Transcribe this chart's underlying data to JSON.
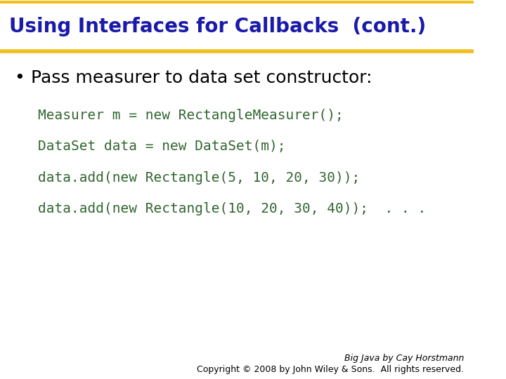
{
  "title": "Using Interfaces for Callbacks  (cont.)",
  "title_color": "#1a1aaa",
  "title_fontsize": 20,
  "bg_color": "#ffffff",
  "header_line_color": "#f0c020",
  "bullet_text": "Pass measurer to data set constructor:",
  "bullet_color": "#000000",
  "bullet_fontsize": 18,
  "code_lines": [
    "Measurer m = new RectangleMeasurer();",
    "DataSet data = new DataSet(m);",
    "data.add(new Rectangle(5, 10, 20, 30));",
    "data.add(new Rectangle(10, 20, 30, 40));  . . ."
  ],
  "code_color": "#336633",
  "code_fontsize": 14,
  "footer_line1": "Big Java by Cay Horstmann",
  "footer_line2": "Copyright © 2008 by John Wiley & Sons.  All rights reserved.",
  "footer_color": "#000000",
  "footer_fontsize": 9
}
